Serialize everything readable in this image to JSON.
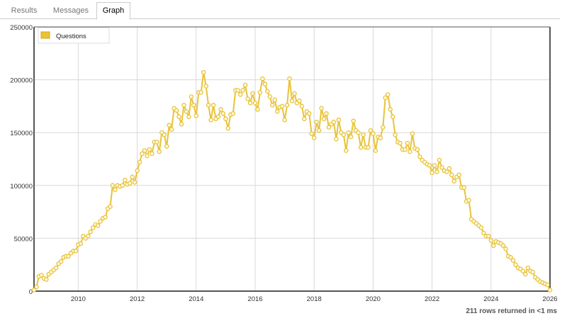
{
  "tabs": [
    {
      "label": "Results",
      "active": false
    },
    {
      "label": "Messages",
      "active": false
    },
    {
      "label": "Graph",
      "active": true
    }
  ],
  "footer": {
    "status": "211 rows returned in <1 ms"
  },
  "colors": {
    "series": "#e8c33a",
    "point_fill": "#fffbe6",
    "grid": "#d8d8d8",
    "axis": "#555555"
  },
  "chart_data": {
    "type": "line",
    "title": "",
    "xlabel": "",
    "ylabel": "",
    "x_start": "2008-07",
    "x_interval": "month",
    "xlim": [
      "2008-07",
      "2026-01"
    ],
    "ylim": [
      0,
      250000
    ],
    "x_ticks": [
      "2010",
      "2012",
      "2014",
      "2016",
      "2018",
      "2020",
      "2022",
      "2024",
      "2026"
    ],
    "y_ticks": [
      "0",
      "50000",
      "100000",
      "150000",
      "200000",
      "250000"
    ],
    "grid": true,
    "legend": {
      "position": "top-left",
      "entries": [
        "Questions"
      ]
    },
    "series": [
      {
        "name": "Questions",
        "values": [
          1000,
          4000,
          14000,
          15000,
          12000,
          11000,
          16000,
          18000,
          20000,
          22000,
          26000,
          28000,
          32000,
          33000,
          33000,
          36000,
          38000,
          38000,
          44000,
          45000,
          52000,
          50000,
          52000,
          56000,
          60000,
          63000,
          62000,
          66000,
          69000,
          70000,
          78000,
          80000,
          100000,
          96000,
          100000,
          99000,
          100000,
          105000,
          101000,
          102000,
          108000,
          103000,
          114000,
          122000,
          130000,
          133000,
          128000,
          134000,
          130000,
          141000,
          141000,
          132000,
          150000,
          148000,
          137000,
          157000,
          153000,
          173000,
          171000,
          165000,
          158000,
          176000,
          170000,
          165000,
          184000,
          176000,
          166000,
          188000,
          188000,
          207000,
          194000,
          176000,
          162000,
          176000,
          163000,
          165000,
          172000,
          168000,
          163000,
          154000,
          167000,
          168000,
          190000,
          190000,
          186000,
          190000,
          195000,
          182000,
          178000,
          187000,
          178000,
          172000,
          188000,
          201000,
          196000,
          189000,
          184000,
          176000,
          181000,
          170000,
          174000,
          175000,
          162000,
          176000,
          201000,
          180000,
          187000,
          178000,
          180000,
          175000,
          163000,
          170000,
          168000,
          149000,
          145000,
          160000,
          152000,
          173000,
          163000,
          168000,
          155000,
          158000,
          160000,
          144000,
          162000,
          150000,
          148000,
          133000,
          150000,
          146000,
          161000,
          152000,
          150000,
          136000,
          148000,
          136000,
          136000,
          152000,
          149000,
          133000,
          146000,
          145000,
          155000,
          183000,
          186000,
          172000,
          165000,
          148000,
          141000,
          140000,
          134000,
          134000,
          140000,
          132000,
          149000,
          135000,
          134000,
          127000,
          124000,
          122000,
          120000,
          119000,
          112000,
          119000,
          113000,
          124000,
          117000,
          114000,
          113000,
          116000,
          110000,
          104000,
          108000,
          110000,
          98000,
          98000,
          85000,
          86000,
          68000,
          66000,
          64000,
          62000,
          60000,
          55000,
          52000,
          52000,
          48000,
          43000,
          47000,
          46000,
          45000,
          43000,
          40000,
          33000,
          32000,
          29000,
          25000,
          22000,
          21000,
          19000,
          16000,
          22000,
          19000,
          18000,
          13000,
          11000,
          9000,
          8000,
          7000,
          6000,
          1000
        ]
      }
    ]
  }
}
